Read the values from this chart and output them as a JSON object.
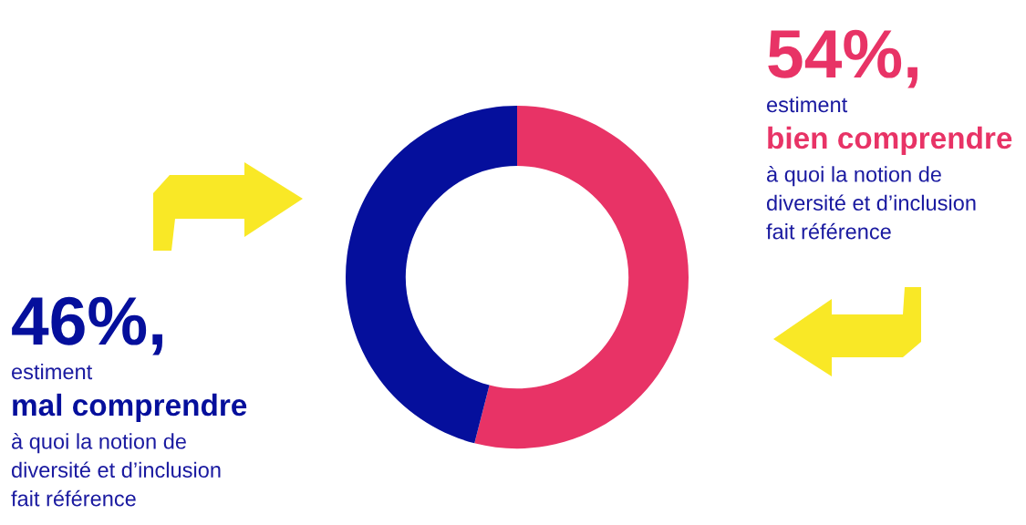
{
  "chart_data": {
    "type": "donut",
    "categories": [
      null,
      null
    ],
    "values": [
      54,
      46
    ],
    "colors": [
      "#e83366",
      "#050f9c"
    ],
    "value_labels": [
      "54%,",
      "46%,"
    ],
    "annotations": [
      "estiment",
      "bien comprendre",
      "à quoi la notion de\ndiversité et d’inclusion\nfait référence",
      "estiment",
      "mal comprendre",
      "à quoi la notion de\ndiversité et d’inclusion\nfait référence"
    ],
    "legend": false
  }
}
